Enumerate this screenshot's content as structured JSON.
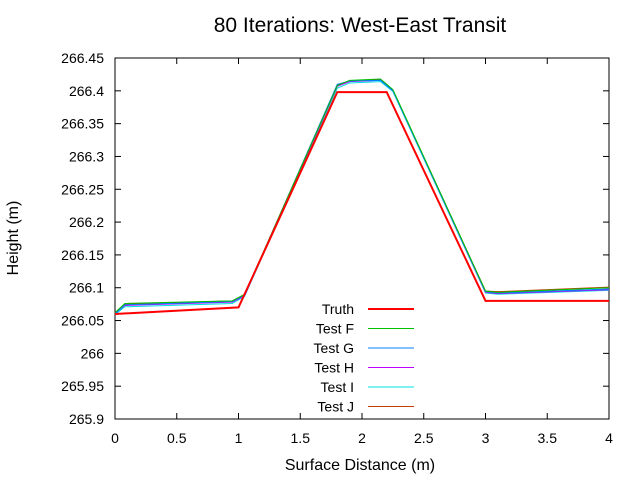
{
  "chart_data": {
    "type": "line",
    "title": "80 Iterations: West-East Transit",
    "xlabel": "Surface Distance (m)",
    "ylabel": "Height (m)",
    "xlim": [
      0,
      4
    ],
    "ylim": [
      265.9,
      266.45
    ],
    "xticks": [
      "0",
      "0.5",
      "1",
      "1.5",
      "2",
      "2.5",
      "3",
      "3.5",
      "4"
    ],
    "yticks": [
      "265.9",
      "265.95",
      "266",
      "266.05",
      "266.1",
      "266.15",
      "266.2",
      "266.25",
      "266.3",
      "266.35",
      "266.4",
      "266.45"
    ],
    "legend_position": "bottom-center",
    "series": [
      {
        "name": "Truth",
        "color": "#ff0000",
        "x": [
          0,
          1,
          1.8,
          2.2,
          3,
          4
        ],
        "y": [
          266.06,
          266.07,
          266.398,
          266.398,
          266.08,
          266.08
        ]
      },
      {
        "name": "Test F",
        "color": "#00c000",
        "x": [
          0,
          0.08,
          0.95,
          1.05,
          1.8,
          1.9,
          2.15,
          2.25,
          3.0,
          3.1,
          4
        ],
        "y": [
          266.062,
          266.076,
          266.08,
          266.09,
          266.408,
          266.416,
          266.418,
          266.402,
          266.095,
          266.093,
          266.1
        ]
      },
      {
        "name": "Test G",
        "color": "#0080ff",
        "x": [
          0,
          0.08,
          0.95,
          1.05,
          1.8,
          1.9,
          2.15,
          2.25,
          3.0,
          3.1,
          4
        ],
        "y": [
          266.06,
          266.074,
          266.079,
          266.089,
          266.41,
          266.415,
          266.416,
          266.4,
          266.094,
          266.092,
          266.098
        ]
      },
      {
        "name": "Test H",
        "color": "#c000ff",
        "x": [
          0,
          0.08,
          0.95,
          1.05,
          1.8,
          1.9,
          2.15,
          2.25,
          3.0,
          3.1,
          4
        ],
        "y": [
          266.061,
          266.073,
          266.078,
          266.088,
          266.407,
          266.414,
          266.416,
          266.401,
          266.093,
          266.091,
          266.097
        ]
      },
      {
        "name": "Test I",
        "color": "#00e0e0",
        "x": [
          0,
          0.08,
          0.95,
          1.05,
          1.8,
          1.9,
          2.15,
          2.25,
          3.0,
          3.1,
          4
        ],
        "y": [
          266.059,
          266.071,
          266.076,
          266.087,
          266.404,
          266.412,
          266.414,
          266.399,
          266.092,
          266.09,
          266.096
        ]
      },
      {
        "name": "Test J",
        "color": "#c04000",
        "x": [
          0,
          0.08,
          0.95,
          1.05,
          1.8,
          1.9,
          2.15,
          2.25,
          3.0,
          3.1,
          4
        ],
        "y": [
          266.062,
          266.075,
          266.08,
          266.09,
          266.409,
          266.415,
          266.417,
          266.401,
          266.095,
          266.094,
          266.101
        ]
      }
    ]
  }
}
